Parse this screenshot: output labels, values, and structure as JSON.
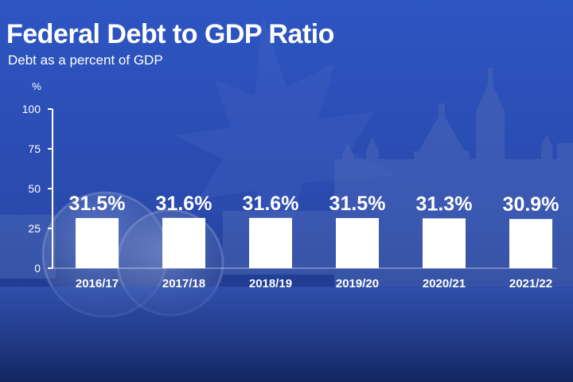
{
  "header": {
    "title": "Federal Debt to GDP Ratio",
    "subtitle": "Debt as a percent of GDP"
  },
  "colors": {
    "background_top": "#2a4fb8",
    "background_bottom": "#1a2f78",
    "bar": "#ffffff",
    "text": "#ffffff"
  },
  "chart_data": {
    "type": "bar",
    "title": "Federal Debt to GDP Ratio",
    "subtitle": "Debt as a percent of GDP",
    "ylabel": "%",
    "xlabel": "",
    "ylim": [
      0,
      100
    ],
    "yticks": [
      0,
      25,
      50,
      75,
      100
    ],
    "grid": false,
    "categories": [
      "2016/17",
      "2017/18",
      "2018/19",
      "2019/20",
      "2020/21",
      "2021/22"
    ],
    "values": [
      31.5,
      31.6,
      31.6,
      31.5,
      31.3,
      30.9
    ],
    "data_labels": [
      "31.5%",
      "31.6%",
      "31.6%",
      "31.5%",
      "31.3%",
      "30.9%"
    ]
  }
}
